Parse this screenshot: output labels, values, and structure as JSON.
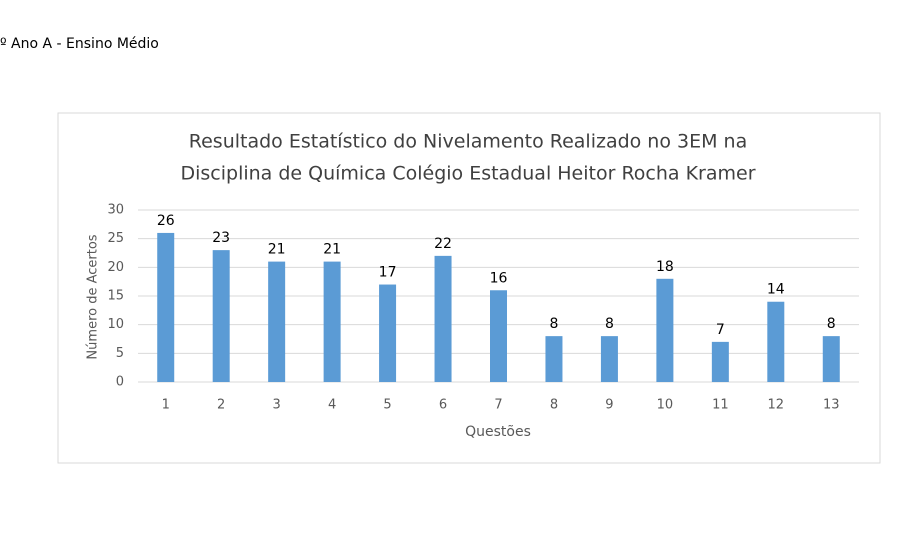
{
  "header": {
    "text": "º Ano A - Ensino Médio"
  },
  "chart_data": {
    "type": "bar",
    "title": [
      "Resultado Estatístico do Nivelamento Realizado no 3EM na",
      "Disciplina de Química Colégio Estadual Heitor Rocha Kramer"
    ],
    "x_label": "Questões",
    "y_label": "Número de Acertos",
    "categories": [
      "1",
      "2",
      "3",
      "4",
      "5",
      "6",
      "7",
      "8",
      "9",
      "10",
      "11",
      "12",
      "13"
    ],
    "values": [
      26,
      23,
      21,
      21,
      17,
      22,
      16,
      8,
      8,
      18,
      7,
      14,
      8
    ],
    "color": "#5b9bd5",
    "ylim": [
      0,
      30
    ],
    "yticks": [
      0,
      5,
      10,
      15,
      20,
      25,
      30
    ],
    "grid": true,
    "data_labels": true
  }
}
